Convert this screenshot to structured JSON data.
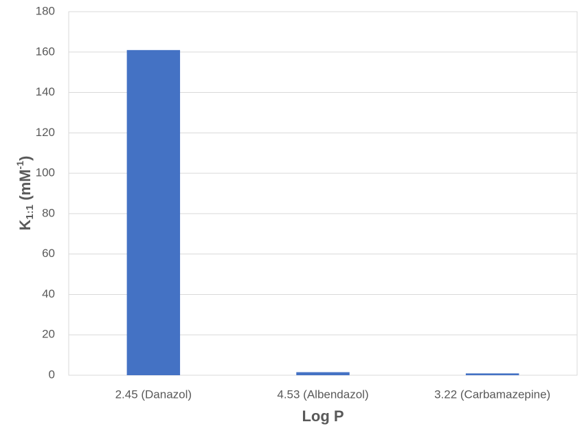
{
  "chart_data": {
    "type": "bar",
    "x_label": "Log P",
    "y_label_parts": [
      "K",
      "1:1",
      " (mM",
      "-1",
      ")"
    ],
    "categories": [
      "2.45 (Danazol)",
      "4.53 (Albendazol)",
      "3.22 (Carbamazepine)"
    ],
    "values": [
      161,
      1.5,
      0.9
    ],
    "color": "#4472c4",
    "ylim": [
      0,
      180
    ],
    "yticks": [
      0,
      20,
      40,
      60,
      80,
      100,
      120,
      140,
      160,
      180
    ],
    "grid": true
  }
}
